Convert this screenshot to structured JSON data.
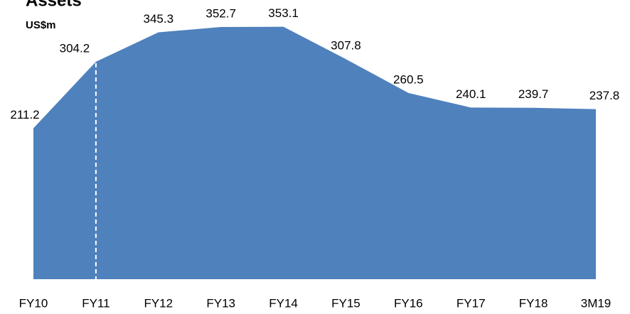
{
  "chart_data": {
    "type": "area",
    "title": "Assets",
    "subtitle": "US$m",
    "categories": [
      "FY10",
      "FY11",
      "FY12",
      "FY13",
      "FY14",
      "FY15",
      "FY16",
      "FY17",
      "FY18",
      "3M19"
    ],
    "values": [
      211.2,
      304.2,
      345.3,
      352.7,
      353.1,
      307.8,
      260.5,
      240.1,
      239.7,
      237.8
    ],
    "color": "#4f81bd",
    "ylim": [
      0,
      390
    ]
  }
}
